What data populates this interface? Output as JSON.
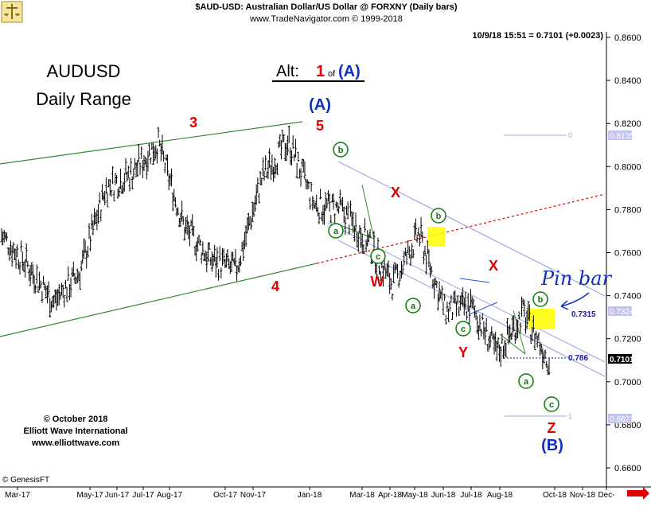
{
  "header": {
    "title": "$AUD-USD:  Australian Dollar/US Dollar @ FORXNY  (Daily bars)",
    "subtitle": "www.TradeNavigator.com © 1999-2018",
    "quote": "10/9/18 15:51 = 0.7101 (+0.0023)"
  },
  "labels": {
    "symbol": "AUDUSD",
    "range": "Daily Range",
    "alt_prefix": "Alt:",
    "alt_wave": "1",
    "alt_of": "of",
    "alt_degree": "(A)",
    "credit_1": "© October 2018",
    "credit_2": "Elliott Wave International",
    "credit_3": "www.elliottwave.com",
    "genesis": "© GenesisFT",
    "handwritten_note": "Pin bar"
  },
  "colors": {
    "bars": "#000000",
    "upper_channel": "#2e8b2e",
    "lower_channel": "#2e8b2e",
    "red_dotted": "#e00000",
    "down_channel": "#a0a8e0",
    "wave_red": "#e00000",
    "wave_blue": "#1030c0",
    "circle_green": "#0a7a0a",
    "highlight": "#ffff00"
  },
  "chart_data": {
    "type": "bar",
    "x_axis_ticks": [
      "Mar-17",
      "May-17",
      "Jun-17",
      "Jul-17",
      "Aug-17",
      "Oct-17",
      "Nov-17",
      "Jan-18",
      "Mar-18",
      "Apr-18",
      "May-18",
      "Jun-18",
      "Jul-18",
      "Aug-18",
      "Oct-18",
      "Nov-18",
      "Dec-"
    ],
    "y_axis_ticks": [
      "0.8600",
      "0.8400",
      "0.8200",
      "0.8000",
      "0.7800",
      "0.7600",
      "0.7400",
      "0.7200",
      "0.7000",
      "0.6800",
      "0.6600"
    ],
    "ylim": [
      0.652,
      0.866
    ],
    "price_labels": {
      "upper": "0.8135",
      "bstop": "0.7324",
      "last": "0.7101",
      "lower": "0.6827"
    },
    "level_labels": {
      "l0": "0",
      "l1": "1",
      "r1": "0.7315",
      "r2": "0.786"
    },
    "path_points": [
      [
        "Mar-17",
        0.768
      ],
      [
        "Apr-17",
        0.754
      ],
      [
        "May-17",
        0.737
      ],
      [
        "Jun-17",
        0.751
      ],
      [
        "Jul-17",
        0.79
      ],
      [
        "Aug-17",
        0.797
      ],
      [
        "Sep-17",
        0.811
      ],
      [
        "Oct-17",
        0.772
      ],
      [
        "Nov-17",
        0.757
      ],
      [
        "Dec-17",
        0.752
      ],
      [
        "Jan-18",
        0.795
      ],
      [
        "late-Jan-18",
        0.812
      ],
      [
        "Feb-18",
        0.782
      ],
      [
        "Mar-18",
        0.78
      ],
      [
        "Apr-18",
        0.766
      ],
      [
        "May-18",
        0.745
      ],
      [
        "Jun-18",
        0.769
      ],
      [
        "Jul-18",
        0.733
      ],
      [
        "Aug-18",
        0.735
      ],
      [
        "Sep-18",
        0.713
      ],
      [
        "late-Sep-18",
        0.732
      ],
      [
        "Oct-18",
        0.71
      ]
    ],
    "wave_labels": {
      "w3": "3",
      "w4": "4",
      "w5": "5",
      "wA": "(A)",
      "wX1": "X",
      "wW": "W",
      "wX2": "X",
      "wY": "Y",
      "wZ": "Z",
      "wB": "(B)",
      "a1": "a",
      "b1": "b",
      "c1": "c",
      "a2": "a",
      "b2": "b",
      "c2": "c",
      "a3": "a",
      "b3": "b",
      "c3": "c"
    }
  }
}
